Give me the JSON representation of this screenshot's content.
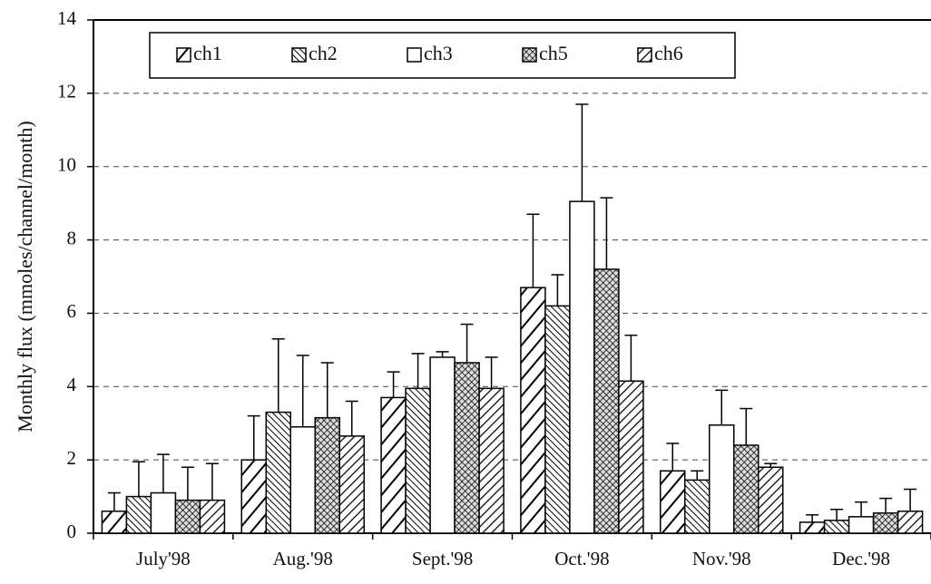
{
  "chart_data": {
    "type": "bar",
    "y_label": "Monthly flux (mmoles/channel/month)",
    "categories": [
      "July'98",
      "Aug.'98",
      "Sept.'98",
      "Oct.'98",
      "Nov.'98",
      "Dec.'98"
    ],
    "ylim": [
      0,
      14
    ],
    "yticks": [
      0,
      2,
      4,
      6,
      8,
      10,
      12,
      14
    ],
    "grid": true,
    "series": [
      {
        "name": "ch1",
        "color": "#000000",
        "pattern": "diagonal",
        "values": [
          0.6,
          2.0,
          3.7,
          6.7,
          1.7,
          0.3
        ],
        "errors": [
          0.5,
          1.2,
          0.7,
          2.0,
          0.75,
          0.2
        ]
      },
      {
        "name": "ch2",
        "color": "#000000",
        "pattern": "dense-diagonal",
        "values": [
          1.0,
          3.3,
          3.95,
          6.2,
          1.45,
          0.35
        ],
        "errors": [
          0.95,
          2.0,
          0.95,
          0.85,
          0.25,
          0.3
        ]
      },
      {
        "name": "ch3",
        "color": "#000000",
        "pattern": "none",
        "values": [
          1.1,
          2.9,
          4.8,
          9.05,
          2.95,
          0.45
        ],
        "errors": [
          1.05,
          1.95,
          0.15,
          2.65,
          0.95,
          0.4
        ]
      },
      {
        "name": "ch5",
        "color": "#000000",
        "pattern": "crosshatch",
        "values": [
          0.9,
          3.15,
          4.65,
          7.2,
          2.4,
          0.55
        ],
        "errors": [
          0.9,
          1.5,
          1.05,
          1.95,
          1.0,
          0.4
        ]
      },
      {
        "name": "ch6",
        "color": "#000000",
        "pattern": "back-diagonal",
        "values": [
          0.9,
          2.65,
          3.95,
          4.15,
          1.8,
          0.6
        ],
        "errors": [
          1.0,
          0.95,
          0.85,
          1.25,
          0.1,
          0.6
        ]
      }
    ]
  }
}
